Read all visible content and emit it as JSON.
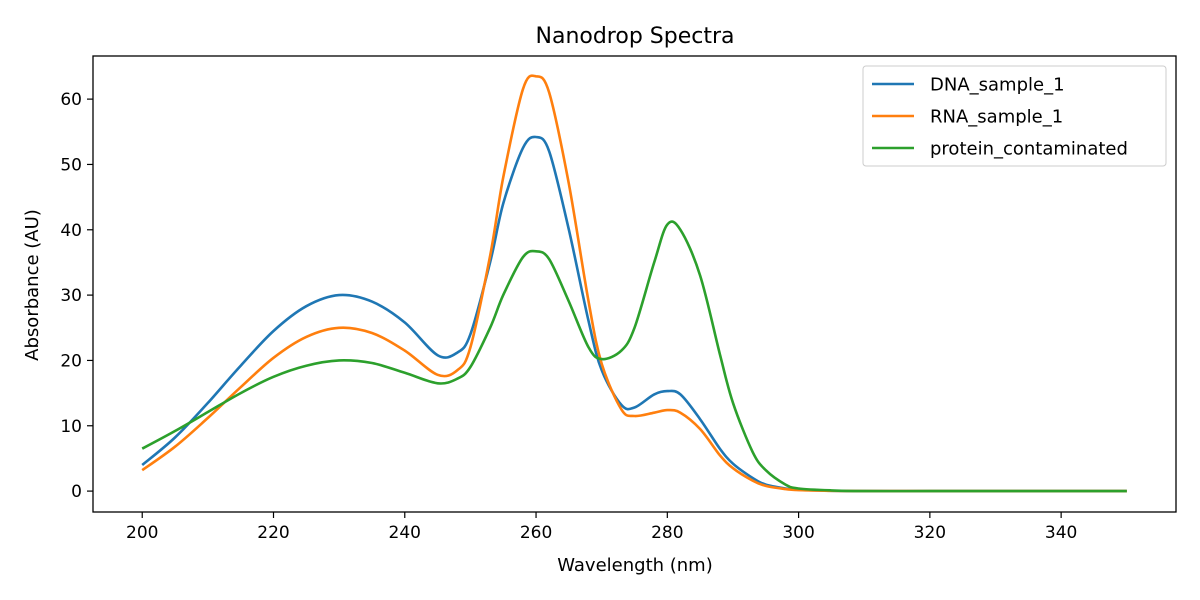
{
  "chart_data": {
    "type": "line",
    "title": "Nanodrop Spectra",
    "xlabel": "Wavelength (nm)",
    "ylabel": "Absorbance (AU)",
    "xlim": [
      192.5,
      357.5
    ],
    "ylim": [
      -3.2,
      66.6
    ],
    "xticks": [
      200,
      220,
      240,
      260,
      280,
      300,
      320,
      340
    ],
    "yticks": [
      0,
      10,
      20,
      30,
      40,
      50,
      60
    ],
    "legend_position": "top-right",
    "grid": false,
    "x": [
      200,
      205,
      210,
      215,
      220,
      225,
      230,
      235,
      240,
      245,
      248,
      250,
      253,
      255,
      258,
      260,
      262,
      265,
      268,
      270,
      273,
      275,
      278,
      280,
      282,
      285,
      288,
      290,
      293,
      295,
      298,
      300,
      305,
      310,
      320,
      330,
      340,
      350
    ],
    "series": [
      {
        "name": "DNA_sample_1",
        "color": "#1f77b4",
        "values": [
          4.0,
          8.2,
          13.5,
          19.2,
          24.5,
          28.3,
          30.0,
          29.0,
          25.8,
          20.8,
          21.2,
          24.0,
          35.0,
          44.0,
          52.5,
          54.2,
          52.0,
          40.0,
          26.0,
          18.5,
          13.2,
          12.8,
          14.8,
          15.3,
          14.8,
          11.0,
          6.5,
          4.2,
          2.0,
          1.0,
          0.4,
          0.2,
          0.05,
          0.0,
          0.0,
          0.0,
          0.0,
          0.0
        ]
      },
      {
        "name": "RNA_sample_1",
        "color": "#ff7f0e",
        "values": [
          3.2,
          6.8,
          11.2,
          15.9,
          20.4,
          23.6,
          25.0,
          24.2,
          21.5,
          17.8,
          18.5,
          22.0,
          36.0,
          48.0,
          61.5,
          63.5,
          61.0,
          47.0,
          29.0,
          19.5,
          12.5,
          11.5,
          12.0,
          12.4,
          12.0,
          9.5,
          5.5,
          3.5,
          1.6,
          0.8,
          0.3,
          0.15,
          0.05,
          0.0,
          0.0,
          0.0,
          0.0,
          0.0
        ]
      },
      {
        "name": "protein_contaminated",
        "color": "#2ca02c",
        "values": [
          6.5,
          9.2,
          12.1,
          15.0,
          17.5,
          19.2,
          20.0,
          19.6,
          18.1,
          16.5,
          17.2,
          19.0,
          25.0,
          30.0,
          35.8,
          36.7,
          35.5,
          29.0,
          22.0,
          20.2,
          21.5,
          25.0,
          35.0,
          40.8,
          40.0,
          33.0,
          21.0,
          13.5,
          6.0,
          3.2,
          1.0,
          0.4,
          0.1,
          0.0,
          0.0,
          0.0,
          0.0,
          0.0
        ]
      }
    ]
  }
}
